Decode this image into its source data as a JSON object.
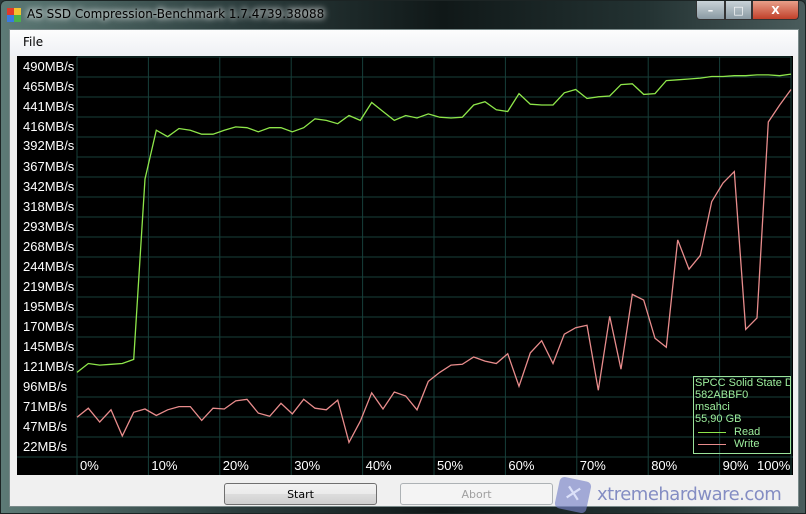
{
  "window": {
    "title": "AS SSD Compression-Benchmark 1.7.4739.38088",
    "minimize": "–",
    "maximize": "□",
    "close": "X"
  },
  "menu": {
    "file": "File"
  },
  "buttons": {
    "start": "Start",
    "abort": "Abort"
  },
  "watermark": {
    "text": "xtremehardware.com"
  },
  "legend": {
    "device": "SPCC Solid State D",
    "id": "582ABBF0",
    "driver": "msahci",
    "size": "55,90 GB",
    "read": "Read",
    "write": "Write"
  },
  "colors": {
    "read": "#8ee64a",
    "write": "#e88c8c",
    "grid": "#173f3a",
    "background": "#000000"
  },
  "chart_data": {
    "type": "line",
    "title": "",
    "xlabel": "",
    "ylabel": "",
    "x_range": [
      0,
      100
    ],
    "ylim": [
      10,
      502
    ],
    "grid": true,
    "legend_placement": "bottom-right",
    "y_ticks": [
      "490MB/s",
      "465MB/s",
      "441MB/s",
      "416MB/s",
      "392MB/s",
      "367MB/s",
      "342MB/s",
      "318MB/s",
      "293MB/s",
      "268MB/s",
      "244MB/s",
      "219MB/s",
      "195MB/s",
      "170MB/s",
      "145MB/s",
      "121MB/s",
      "96MB/s",
      "71MB/s",
      "47MB/s",
      "22MB/s"
    ],
    "y_tick_values": [
      490,
      465,
      441,
      416,
      392,
      367,
      342,
      318,
      293,
      268,
      244,
      219,
      195,
      170,
      145,
      121,
      96,
      71,
      47,
      22
    ],
    "x_ticks": [
      "0%",
      "10%",
      "20%",
      "30%",
      "40%",
      "50%",
      "60%",
      "70%",
      "80%",
      "90%",
      "100%"
    ],
    "series": [
      {
        "name": "Read",
        "values": [
          114,
          125,
          123,
          124,
          125,
          130,
          352,
          412,
          404,
          414,
          412,
          407,
          407,
          412,
          416,
          415,
          410,
          415,
          415,
          410,
          415,
          426,
          424,
          420,
          430,
          424,
          446,
          435,
          424,
          430,
          427,
          432,
          428,
          427,
          428,
          443,
          447,
          437,
          435,
          457,
          444,
          443,
          443,
          458,
          462,
          451,
          453,
          454,
          468,
          469,
          456,
          457,
          473,
          474,
          475,
          476,
          478,
          478,
          479,
          479,
          480,
          480,
          479,
          481
        ]
      },
      {
        "name": "Write",
        "values": [
          59,
          70,
          53,
          68,
          36,
          65,
          69,
          61,
          68,
          72,
          72,
          55,
          70,
          69,
          79,
          81,
          64,
          60,
          76,
          63,
          81,
          70,
          68,
          80,
          28,
          54,
          89,
          69,
          90,
          85,
          68,
          103,
          114,
          123,
          124,
          133,
          128,
          125,
          137,
          97,
          138,
          153,
          125,
          161,
          169,
          172,
          92,
          183,
          118,
          210,
          203,
          156,
          145,
          277,
          241,
          258,
          324,
          347,
          361,
          167,
          181,
          422,
          443,
          462
        ]
      }
    ]
  }
}
